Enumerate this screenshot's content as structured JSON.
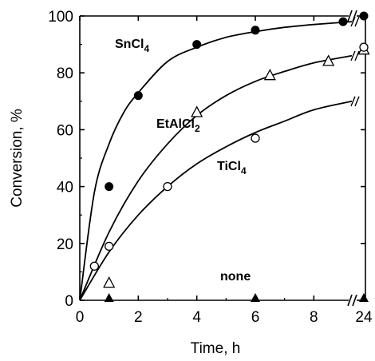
{
  "chart_data": {
    "type": "scatter",
    "xlabel": "Time, h",
    "ylabel": "Conversion, %",
    "xlim": [
      0,
      24
    ],
    "ylim": [
      0,
      100
    ],
    "x_axis_break": [
      9.3,
      24
    ],
    "x_ticks": [
      0,
      2,
      4,
      6,
      8,
      24
    ],
    "y_ticks": [
      0,
      20,
      40,
      60,
      80,
      100
    ],
    "grid": false,
    "series": [
      {
        "name": "SnCl4",
        "label_base": "SnCl",
        "label_sub": "4",
        "marker": "filled-circle",
        "points": [
          [
            1,
            40
          ],
          [
            2,
            72
          ],
          [
            4,
            90
          ],
          [
            6,
            95
          ],
          [
            9,
            98
          ],
          [
            24,
            100
          ]
        ],
        "fit_curve": [
          [
            0,
            0
          ],
          [
            0.5,
            38
          ],
          [
            1,
            55
          ],
          [
            1.5,
            66
          ],
          [
            2,
            73
          ],
          [
            3,
            84
          ],
          [
            4,
            89
          ],
          [
            5,
            92.5
          ],
          [
            6,
            94.5
          ],
          [
            7,
            96
          ],
          [
            8,
            97
          ],
          [
            9.3,
            98
          ]
        ]
      },
      {
        "name": "EtAlCl2",
        "label_base": "EtAlCl",
        "label_sub": "2",
        "marker": "open-triangle",
        "points": [
          [
            1,
            6
          ],
          [
            4,
            66
          ],
          [
            6.5,
            79
          ],
          [
            8.5,
            84
          ],
          [
            24,
            88
          ]
        ],
        "fit_curve": [
          [
            0,
            0
          ],
          [
            1,
            24
          ],
          [
            2,
            42
          ],
          [
            3,
            55
          ],
          [
            4,
            65
          ],
          [
            5,
            72
          ],
          [
            6,
            77
          ],
          [
            7,
            80.5
          ],
          [
            8,
            83.5
          ],
          [
            9.3,
            86
          ]
        ]
      },
      {
        "name": "TiCl4",
        "label_base": "TiCl",
        "label_sub": "4",
        "marker": "open-circle",
        "points": [
          [
            0.5,
            12
          ],
          [
            1,
            19
          ],
          [
            3,
            40
          ],
          [
            6,
            57
          ],
          [
            24,
            89
          ]
        ],
        "fit_curve": [
          [
            0,
            0
          ],
          [
            1,
            17
          ],
          [
            2,
            30
          ],
          [
            3,
            40
          ],
          [
            4,
            48
          ],
          [
            5,
            54
          ],
          [
            6,
            59
          ],
          [
            7,
            63
          ],
          [
            8,
            67
          ],
          [
            9.3,
            70
          ]
        ]
      },
      {
        "name": "none",
        "label_base": "none",
        "label_sub": "",
        "marker": "filled-triangle",
        "points": [
          [
            1,
            0
          ],
          [
            6,
            0
          ],
          [
            24,
            0
          ]
        ]
      }
    ]
  }
}
